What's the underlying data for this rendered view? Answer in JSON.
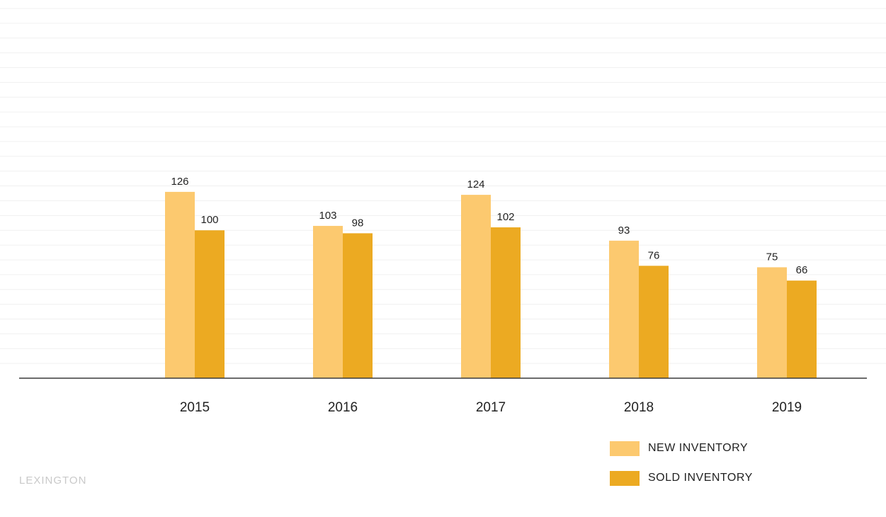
{
  "chart_data": {
    "type": "bar",
    "categories": [
      "2015",
      "2016",
      "2017",
      "2018",
      "2019"
    ],
    "series": [
      {
        "name": "NEW INVENTORY",
        "values": [
          126,
          103,
          124,
          93,
          75
        ],
        "color": "#FCC96F"
      },
      {
        "name": "SOLD INVENTORY",
        "values": [
          100,
          98,
          102,
          76,
          66
        ],
        "color": "#ECAA22"
      }
    ],
    "ylim": [
      0,
      250
    ],
    "grid": true,
    "data_labels": true,
    "legend_position": "bottom-right"
  },
  "brand": "LEXINGTON"
}
